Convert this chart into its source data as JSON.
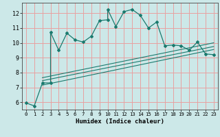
{
  "title": "",
  "xlabel": "Humidex (Indice chaleur)",
  "ylabel": "",
  "bg_color": "#cce8e8",
  "line_color": "#1a7a6e",
  "grid_color": "#e8a0a0",
  "xlim": [
    -0.5,
    23.5
  ],
  "ylim": [
    5.5,
    12.7
  ],
  "xticks": [
    0,
    1,
    2,
    3,
    4,
    5,
    6,
    7,
    8,
    9,
    10,
    11,
    12,
    13,
    14,
    15,
    16,
    17,
    18,
    19,
    20,
    21,
    22,
    23
  ],
  "yticks": [
    6,
    7,
    8,
    9,
    10,
    11,
    12
  ],
  "main_x": [
    0,
    1,
    2,
    3,
    3,
    4,
    5,
    6,
    7,
    8,
    9,
    10,
    10,
    11,
    12,
    13,
    14,
    15,
    16,
    17,
    18,
    19,
    20,
    21,
    22,
    23
  ],
  "main_y": [
    5.95,
    5.75,
    7.3,
    7.3,
    10.7,
    9.5,
    10.65,
    10.2,
    10.05,
    10.45,
    11.5,
    11.55,
    12.25,
    11.1,
    12.1,
    12.25,
    11.85,
    11.0,
    11.4,
    9.8,
    9.85,
    9.8,
    9.5,
    10.05,
    9.25,
    9.2
  ],
  "line1_x": [
    2,
    23
  ],
  "line1_y": [
    7.15,
    9.55
  ],
  "line2_x": [
    2,
    23
  ],
  "line2_y": [
    7.45,
    9.75
  ],
  "line3_x": [
    2,
    23
  ],
  "line3_y": [
    7.65,
    10.0
  ]
}
